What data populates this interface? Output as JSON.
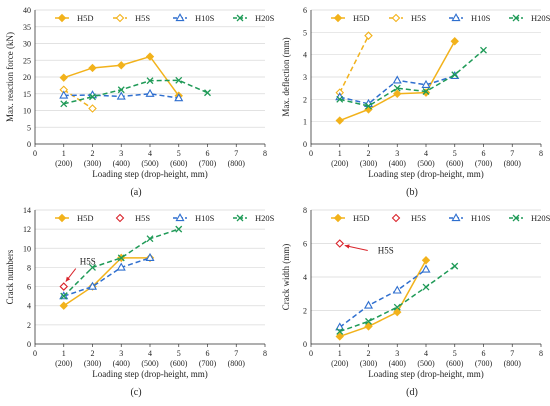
{
  "panel_labels": [
    "(a)",
    "(b)",
    "(c)",
    "(d)"
  ],
  "colors": {
    "H5D": "#f2b21b",
    "H5S": "#f2b21b",
    "H10S": "#2f6fcf",
    "H20S": "#1f9a57",
    "annotation": "#d9232a",
    "grid": "#d9d9d9",
    "axis": "#333333"
  },
  "chart_data": [
    {
      "type": "line",
      "title": "",
      "xlabel": "Loading step (drop-height, mm)",
      "ylabel": "Max. reaction force (kN)",
      "xlim": [
        0,
        8
      ],
      "ylim": [
        0,
        40
      ],
      "yticks": [
        0,
        5,
        10,
        15,
        20,
        25,
        30,
        35,
        40
      ],
      "xticks": [
        0,
        1,
        2,
        3,
        4,
        5,
        6,
        7,
        8
      ],
      "xtick_sublabels": [
        "",
        "(200)",
        "(300)",
        "(400)",
        "(500)",
        "(600)",
        "(700)",
        "(800)",
        ""
      ],
      "grid": true,
      "legend_position": "top",
      "series": [
        {
          "name": "H5D",
          "marker": "diamond",
          "style": "solid",
          "x": [
            1,
            2,
            3,
            4,
            5
          ],
          "y": [
            19.8,
            22.7,
            23.5,
            26.1,
            14.4
          ]
        },
        {
          "name": "H5S",
          "marker": "diamond-open",
          "style": "dashed",
          "x": [
            1,
            2
          ],
          "y": [
            16.2,
            10.6
          ]
        },
        {
          "name": "H10S",
          "marker": "triangle",
          "style": "dashed",
          "x": [
            1,
            2,
            3,
            4,
            5
          ],
          "y": [
            14.5,
            14.6,
            14.2,
            15.0,
            13.7
          ]
        },
        {
          "name": "H20S",
          "marker": "x",
          "style": "dashed",
          "x": [
            1,
            2,
            3,
            4,
            5,
            6
          ],
          "y": [
            12.0,
            14.1,
            16.2,
            18.9,
            19.0,
            15.3
          ]
        }
      ]
    },
    {
      "type": "line",
      "title": "",
      "xlabel": "Loading step (drop-height, mm)",
      "ylabel": "Max. deflection (mm)",
      "xlim": [
        0,
        8
      ],
      "ylim": [
        0,
        6
      ],
      "yticks": [
        0,
        1,
        2,
        3,
        4,
        5,
        6
      ],
      "xticks": [
        0,
        1,
        2,
        3,
        4,
        5,
        6,
        7,
        8
      ],
      "xtick_sublabels": [
        "",
        "(200)",
        "(300)",
        "(400)",
        "(500)",
        "(600)",
        "(700)",
        "(800)",
        ""
      ],
      "grid": true,
      "legend_position": "top",
      "series": [
        {
          "name": "H5D",
          "marker": "diamond",
          "style": "solid",
          "x": [
            1,
            2,
            3,
            4,
            5
          ],
          "y": [
            1.05,
            1.55,
            2.25,
            2.3,
            4.6
          ]
        },
        {
          "name": "H5S",
          "marker": "diamond-open",
          "style": "dashed",
          "x": [
            1,
            2
          ],
          "y": [
            2.3,
            4.85
          ]
        },
        {
          "name": "H10S",
          "marker": "triangle",
          "style": "dashed",
          "x": [
            1,
            2,
            3,
            4,
            5
          ],
          "y": [
            2.1,
            1.8,
            2.85,
            2.65,
            3.05
          ]
        },
        {
          "name": "H20S",
          "marker": "x",
          "style": "dashed",
          "x": [
            1,
            2,
            3,
            4,
            5,
            6
          ],
          "y": [
            2.0,
            1.7,
            2.5,
            2.35,
            3.1,
            4.2
          ]
        }
      ]
    },
    {
      "type": "line",
      "title": "",
      "xlabel": "Loading step (drop-height, mm)",
      "ylabel": "Crack numbers",
      "xlim": [
        0,
        8
      ],
      "ylim": [
        0,
        14
      ],
      "yticks": [
        0,
        2,
        4,
        6,
        8,
        10,
        12,
        14
      ],
      "xticks": [
        0,
        1,
        2,
        3,
        4,
        5,
        6,
        7,
        8
      ],
      "xtick_sublabels": [
        "",
        "(200)",
        "(300)",
        "(400)",
        "(500)",
        "(600)",
        "(700)",
        "(800)",
        ""
      ],
      "grid": true,
      "legend_position": "top",
      "annotation": {
        "text": "H5S",
        "x": 1,
        "y": 6
      },
      "series": [
        {
          "name": "H5D",
          "marker": "diamond",
          "style": "solid",
          "x": [
            1,
            2,
            3,
            4
          ],
          "y": [
            4,
            6,
            9,
            9
          ]
        },
        {
          "name": "H5S",
          "marker": "diamond-open-red",
          "style": "none",
          "x": [
            1
          ],
          "y": [
            6
          ]
        },
        {
          "name": "H10S",
          "marker": "triangle",
          "style": "dashed",
          "x": [
            1,
            2,
            3,
            4
          ],
          "y": [
            5,
            6,
            8,
            9
          ]
        },
        {
          "name": "H20S",
          "marker": "x",
          "style": "dashed",
          "x": [
            1,
            2,
            3,
            4,
            5
          ],
          "y": [
            5,
            8,
            9,
            11,
            12
          ]
        }
      ]
    },
    {
      "type": "line",
      "title": "",
      "xlabel": "Loading step (drop-height, mm)",
      "ylabel": "Crack width (mm)",
      "xlim": [
        0,
        8
      ],
      "ylim": [
        0,
        8
      ],
      "yticks": [
        0,
        2,
        4,
        6,
        8
      ],
      "xticks": [
        0,
        1,
        2,
        3,
        4,
        5,
        6,
        7,
        8
      ],
      "xtick_sublabels": [
        "",
        "(200)",
        "(300)",
        "(400)",
        "(500)",
        "(600)",
        "(700)",
        "(800)",
        ""
      ],
      "grid": true,
      "legend_position": "top",
      "annotation": {
        "text": "H5S",
        "x": 1,
        "y": 6
      },
      "series": [
        {
          "name": "H5D",
          "marker": "diamond",
          "style": "solid",
          "x": [
            1,
            2,
            3,
            4
          ],
          "y": [
            0.45,
            1.05,
            1.9,
            5.0
          ]
        },
        {
          "name": "H5S",
          "marker": "diamond-open-red",
          "style": "none",
          "x": [
            1
          ],
          "y": [
            6
          ]
        },
        {
          "name": "H10S",
          "marker": "triangle",
          "style": "dashed",
          "x": [
            1,
            2,
            3,
            4
          ],
          "y": [
            1.0,
            2.3,
            3.2,
            4.45
          ]
        },
        {
          "name": "H20S",
          "marker": "x",
          "style": "dashed",
          "x": [
            1,
            2,
            3,
            4,
            5
          ],
          "y": [
            0.75,
            1.35,
            2.2,
            3.4,
            4.65
          ]
        }
      ]
    }
  ]
}
